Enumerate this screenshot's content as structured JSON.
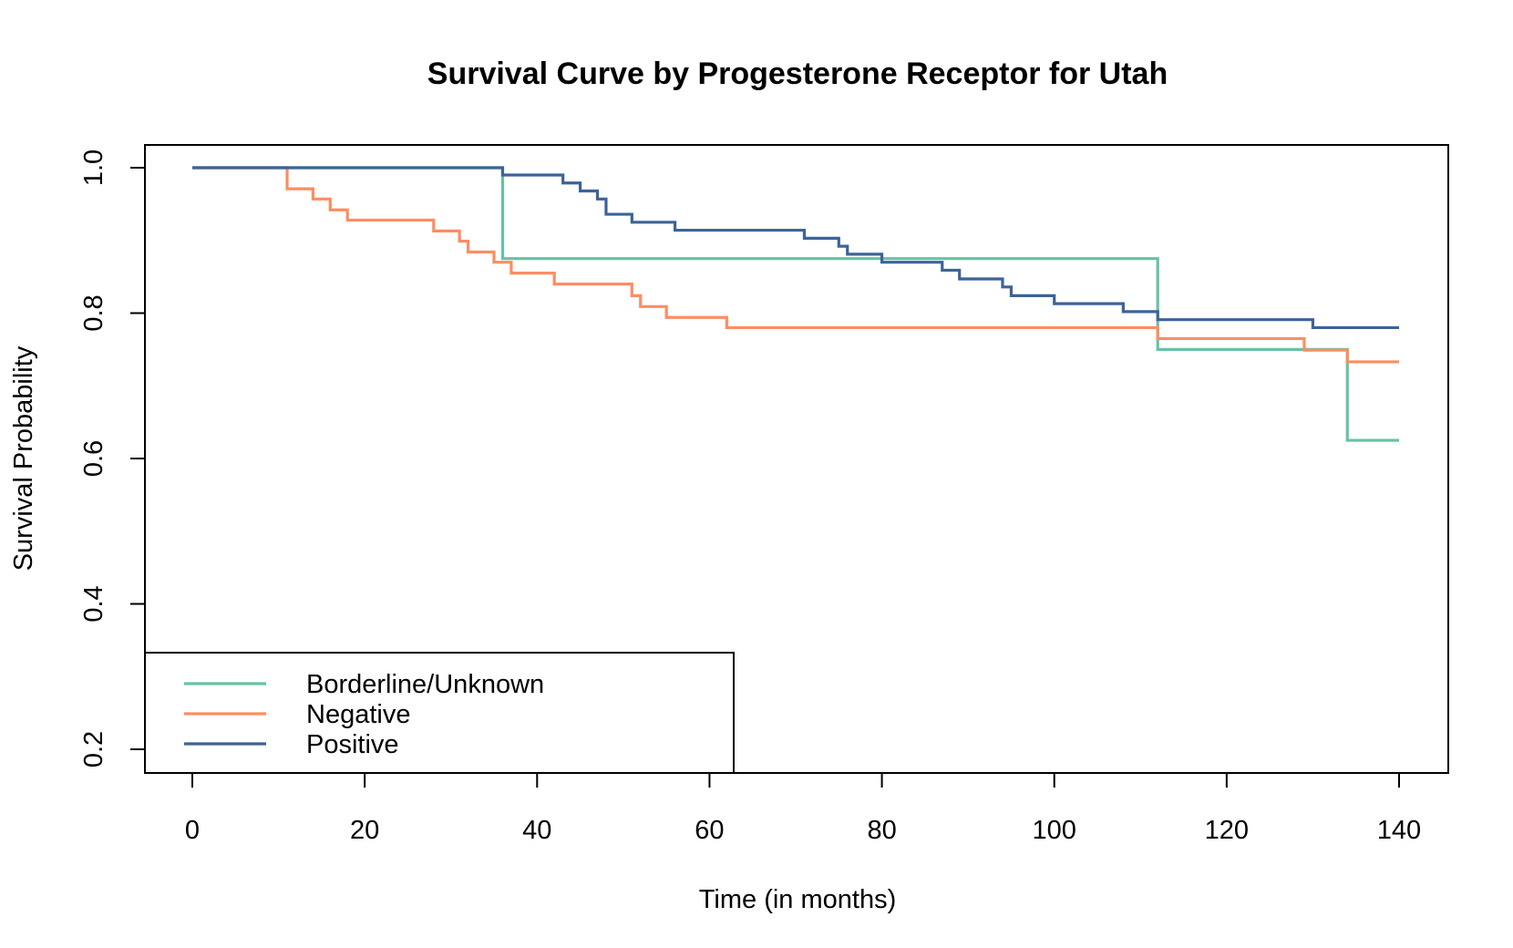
{
  "chart_data": {
    "type": "line",
    "step": true,
    "title": "Survival Curve by Progesterone Receptor for Utah",
    "xlabel": "Time (in months)",
    "ylabel": "Survival Probability",
    "xlim": [
      0,
      140
    ],
    "ylim": [
      0.2,
      1.0
    ],
    "xticks": [
      "0",
      "20",
      "40",
      "60",
      "80",
      "100",
      "120",
      "140"
    ],
    "yticks": [
      "0.2",
      "0.4",
      "0.6",
      "0.8",
      "1.0"
    ],
    "grid": false,
    "legend_position": "bottom-left",
    "series": [
      {
        "name": "Borderline/Unknown",
        "color": "#66c2a5",
        "x": [
          0,
          36,
          112,
          134,
          140
        ],
        "y": [
          1.0,
          0.875,
          0.75,
          0.625,
          0.625
        ]
      },
      {
        "name": "Negative",
        "color": "#fc8d62",
        "x": [
          0,
          11,
          14,
          16,
          18,
          28,
          31,
          32,
          35,
          37,
          42,
          51,
          52,
          55,
          62,
          112,
          129,
          134,
          140
        ],
        "y": [
          1.0,
          0.971,
          0.957,
          0.942,
          0.928,
          0.913,
          0.899,
          0.884,
          0.87,
          0.855,
          0.84,
          0.824,
          0.809,
          0.794,
          0.78,
          0.765,
          0.749,
          0.733,
          0.733
        ]
      },
      {
        "name": "Positive",
        "color": "#3d6398",
        "x": [
          0,
          36,
          43,
          45,
          47,
          48,
          51,
          56,
          71,
          75,
          76,
          80,
          87,
          89,
          94,
          95,
          100,
          108,
          112,
          130,
          140
        ],
        "y": [
          1.0,
          0.99,
          0.979,
          0.968,
          0.957,
          0.936,
          0.925,
          0.914,
          0.903,
          0.892,
          0.881,
          0.87,
          0.859,
          0.847,
          0.836,
          0.824,
          0.813,
          0.802,
          0.791,
          0.78,
          0.78
        ]
      }
    ]
  }
}
